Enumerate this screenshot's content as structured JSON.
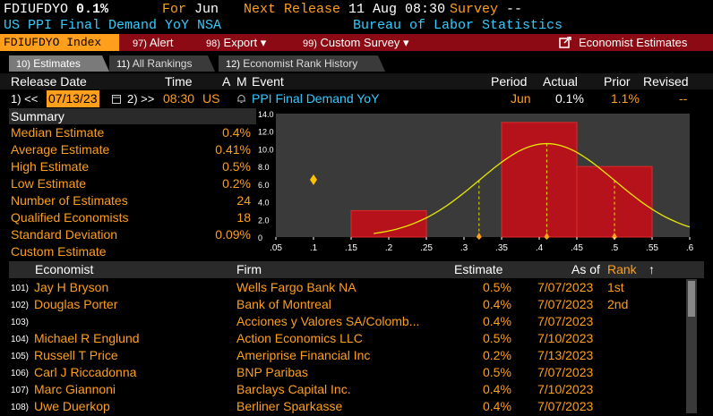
{
  "header": {
    "ticker": "FDIUFDYO",
    "value": "0.1%",
    "for_label": "For",
    "for_value": "Jun",
    "next_release_label": "Next Release",
    "next_release_value": "11 Aug 08:30",
    "survey_label": "Survey",
    "survey_value": "--",
    "description": "US PPI Final Demand YoY NSA",
    "source": "Bureau of Labor Statistics"
  },
  "funcbar": {
    "ticker_tab": "FDIUFDYO Index",
    "alert_num": "97)",
    "alert": "Alert",
    "export_num": "98)",
    "export": "Export ▾",
    "custom_num": "99)",
    "custom": "Custom Survey ▾",
    "economist_estimates": "Economist Estimates"
  },
  "tabs": [
    {
      "num": "10)",
      "label": "Estimates"
    },
    {
      "num": "11)",
      "label": "All Rankings"
    },
    {
      "num": "12)",
      "label": "Economist Rank History"
    }
  ],
  "release": {
    "headers": {
      "release_date": "Release Date",
      "time": "Time",
      "a": "A",
      "m": "M",
      "event": "Event",
      "period": "Period",
      "actual": "Actual",
      "prior": "Prior",
      "revised": "Revised"
    },
    "row": {
      "prev_btn": "1) <<",
      "date": "07/13/23",
      "next_btn": "2) >>",
      "time": "08:30",
      "country": "US",
      "event": "PPI Final Demand YoY",
      "period": "Jun",
      "actual": "0.1%",
      "prior": "1.1%",
      "revised": "--"
    }
  },
  "summary": {
    "title": "Summary",
    "rows": [
      {
        "label": "Median Estimate",
        "value": "0.4%"
      },
      {
        "label": "Average Estimate",
        "value": "0.41%"
      },
      {
        "label": "High Estimate",
        "value": "0.5%"
      },
      {
        "label": "Low Estimate",
        "value": "0.2%"
      },
      {
        "label": "Number of Estimates",
        "value": "24"
      },
      {
        "label": "Qualified Economists",
        "value": "18"
      },
      {
        "label": "Standard Deviation",
        "value": "0.09%"
      },
      {
        "label": "Custom Estimate",
        "value": ""
      }
    ]
  },
  "colors": {
    "amber": "#ff9f1c",
    "bar": "#b5121b",
    "curve": "#e8e800",
    "header_red": "#8b0a14",
    "cyan": "#33ccff"
  },
  "chart_data": {
    "type": "bar",
    "bins": [
      {
        "from": 0.15,
        "to": 0.25,
        "value": 3.0
      },
      {
        "from": 0.35,
        "to": 0.45,
        "value": 13.0
      },
      {
        "from": 0.45,
        "to": 0.55,
        "value": 8.0
      }
    ],
    "curve": {
      "mean": 0.41,
      "sd": 0.09,
      "peak": 10.6
    },
    "markers": [
      0.1,
      0.32,
      0.41,
      0.5
    ],
    "x_ticks": [
      ".05",
      ".1",
      ".15",
      ".2",
      ".25",
      ".3",
      ".35",
      ".4",
      ".45",
      ".5",
      ".55",
      ".6"
    ],
    "y_ticks": [
      "0",
      "2.0",
      "4.0",
      "6.0",
      "8.0",
      "10.0",
      "12.0",
      "14.0"
    ],
    "xlim": [
      0.05,
      0.6
    ],
    "ylim": [
      0,
      14
    ]
  },
  "table": {
    "headers": {
      "economist": "Economist",
      "firm": "Firm",
      "estimate": "Estimate",
      "as_of": "As of",
      "rank": "Rank",
      "sort_icon": "↑"
    },
    "rows": [
      {
        "idx": "101)",
        "economist": "Jay H Bryson",
        "firm": "Wells Fargo Bank NA",
        "estimate": "0.5%",
        "as_of": "7/07/2023",
        "rank": "1st"
      },
      {
        "idx": "102)",
        "economist": "Douglas Porter",
        "firm": "Bank of Montreal",
        "estimate": "0.4%",
        "as_of": "7/07/2023",
        "rank": "2nd"
      },
      {
        "idx": "103)",
        "economist": "",
        "firm": "Acciones y Valores SA/Colomb...",
        "estimate": "0.4%",
        "as_of": "7/07/2023",
        "rank": ""
      },
      {
        "idx": "104)",
        "economist": "Michael R Englund",
        "firm": "Action Economics LLC",
        "estimate": "0.5%",
        "as_of": "7/10/2023",
        "rank": ""
      },
      {
        "idx": "105)",
        "economist": "Russell T Price",
        "firm": "Ameriprise Financial Inc",
        "estimate": "0.2%",
        "as_of": "7/13/2023",
        "rank": ""
      },
      {
        "idx": "106)",
        "economist": "Carl J Riccadonna",
        "firm": "BNP Paribas",
        "estimate": "0.5%",
        "as_of": "7/07/2023",
        "rank": ""
      },
      {
        "idx": "107)",
        "economist": "Marc Giannoni",
        "firm": "Barclays Capital Inc.",
        "estimate": "0.4%",
        "as_of": "7/10/2023",
        "rank": ""
      },
      {
        "idx": "108)",
        "economist": "Uwe Duerkop",
        "firm": "Berliner Sparkasse",
        "estimate": "0.4%",
        "as_of": "7/07/2023",
        "rank": ""
      }
    ]
  }
}
